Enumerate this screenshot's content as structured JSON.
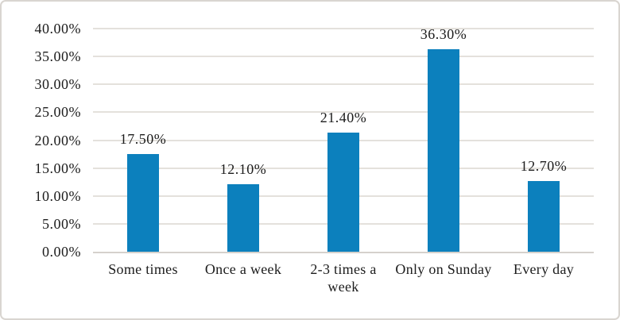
{
  "chart_data": {
    "type": "bar",
    "title": "",
    "xlabel": "",
    "ylabel": "",
    "categories": [
      "Some times",
      "Once a week",
      "2-3 times a week",
      "Only on Sunday",
      "Every day"
    ],
    "values": [
      17.5,
      12.1,
      21.4,
      36.3,
      12.7
    ],
    "value_labels": [
      "17.50%",
      "12.10%",
      "21.40%",
      "36.30%",
      "12.70%"
    ],
    "y_ticks": [
      0,
      5,
      10,
      15,
      20,
      25,
      30,
      35,
      40
    ],
    "y_tick_labels": [
      "0.00%",
      "5.00%",
      "10.00%",
      "15.00%",
      "20.00%",
      "25.00%",
      "30.00%",
      "35.00%",
      "40.00%"
    ],
    "ylim": [
      0,
      40
    ],
    "grid": "horizontal",
    "legend": "none",
    "colors": {
      "bar": "#0c80bd",
      "gridline": "#e4e1dc",
      "axis_line": "#d5d1cc",
      "text": "#1c1c1c",
      "frame_border": "#d9d5d0",
      "background": "#ffffff"
    }
  }
}
